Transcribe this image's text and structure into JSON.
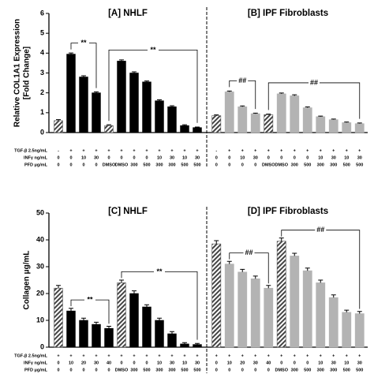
{
  "chart_data": [
    {
      "type": "bar",
      "y_label": [
        "Relative COL1A1 Expression",
        "[Fold Change]"
      ],
      "ylim": [
        0,
        6
      ],
      "yticks": [
        0,
        1,
        2,
        3,
        4,
        5,
        6
      ],
      "row_labels": [
        "TGF-β 2.5ng/mL",
        "INFγ ng/mL",
        "PFD μg/mL"
      ],
      "panels": [
        {
          "title": "[A]  NHLF",
          "color": "#000000",
          "rows": [
            [
              "-",
              "+",
              "+",
              "+",
              "+",
              "+",
              "+",
              "+",
              "+",
              "+",
              "+",
              "+"
            ],
            [
              "0",
              "0",
              "10",
              "30",
              "0",
              "0",
              "0",
              "0",
              "10",
              "30",
              "10",
              "30"
            ],
            [
              "0",
              "0",
              "0",
              "0",
              "DMSO",
              "DMSO",
              "300",
              "500",
              "300",
              "300",
              "500",
              "500"
            ]
          ],
          "values": [
            0.6,
            3.95,
            2.8,
            2.0,
            0.35,
            3.6,
            3.0,
            2.55,
            1.6,
            1.3,
            0.35,
            0.25
          ],
          "errors": [
            0.05,
            0.06,
            0.06,
            0.05,
            0.04,
            0.06,
            0.06,
            0.05,
            0.05,
            0.05,
            0.04,
            0.03
          ],
          "hatched": [
            true,
            false,
            false,
            false,
            true,
            false,
            false,
            false,
            false,
            false,
            false,
            false
          ],
          "annotations": [
            "**",
            "**"
          ]
        },
        {
          "title": "[B]  IPF Fibroblasts",
          "color": "#b3b3b3",
          "rows": [
            [
              "-",
              "+",
              "+",
              "+",
              "+",
              "+",
              "+",
              "+",
              "+",
              "+",
              "+",
              "+"
            ],
            [
              "0",
              "0",
              "10",
              "30",
              "0",
              "0",
              "0",
              "0",
              "10",
              "30",
              "10",
              "30"
            ],
            [
              "0",
              "0",
              "0",
              "0",
              "DMSO",
              "DMSO",
              "300",
              "500",
              "300",
              "300",
              "500",
              "500"
            ]
          ],
          "values": [
            0.85,
            2.05,
            1.3,
            0.95,
            0.9,
            1.95,
            1.85,
            1.25,
            0.8,
            0.65,
            0.5,
            0.45
          ],
          "errors": [
            0.04,
            0.04,
            0.04,
            0.03,
            0.03,
            0.04,
            0.05,
            0.04,
            0.03,
            0.03,
            0.03,
            0.03
          ],
          "hatched": [
            true,
            false,
            false,
            false,
            true,
            false,
            false,
            false,
            false,
            false,
            false,
            false
          ],
          "annotations": [
            "##",
            "##"
          ]
        }
      ]
    },
    {
      "type": "bar",
      "y_label": [
        "Collagen μg/mL"
      ],
      "ylim": [
        0,
        50
      ],
      "yticks": [
        0,
        10,
        20,
        30,
        40,
        50
      ],
      "row_labels": [
        "TGF-β 2.5ng/mL",
        "INFγ ng/mL",
        "PFD μg/mL"
      ],
      "panels": [
        {
          "title": "[C]  NHLF",
          "color": "#000000",
          "rows": [
            [
              "+",
              "+",
              "+",
              "+",
              "+",
              "+",
              "+",
              "+",
              "+",
              "+",
              "+",
              "+"
            ],
            [
              "0",
              "10",
              "20",
              "30",
              "40",
              "0",
              "0",
              "0",
              "10",
              "30",
              "10",
              "30"
            ],
            [
              "0",
              "0",
              "0",
              "0",
              "0",
              "DMSO",
              "300",
              "500",
              "300",
              "300",
              "500",
              "500"
            ]
          ],
          "values": [
            22,
            13.5,
            10,
            8.5,
            7,
            24,
            20,
            15,
            10,
            5,
            1.2,
            1.0
          ],
          "errors": [
            1,
            1,
            0.8,
            0.8,
            0.8,
            1,
            1,
            0.8,
            0.8,
            0.8,
            0.5,
            0.4
          ],
          "hatched": [
            true,
            false,
            false,
            false,
            false,
            true,
            false,
            false,
            false,
            false,
            false,
            false
          ],
          "annotations": [
            "**",
            "**"
          ]
        },
        {
          "title": "[D]  IPF Fibroblasts",
          "color": "#b3b3b3",
          "rows": [
            [
              "+",
              "+",
              "+",
              "+",
              "+",
              "+",
              "+",
              "+",
              "+",
              "+",
              "+",
              "+"
            ],
            [
              "0",
              "10",
              "20",
              "30",
              "40",
              "0",
              "0",
              "0",
              "10",
              "30",
              "10",
              "30"
            ],
            [
              "0",
              "0",
              "0",
              "0",
              "0",
              "DMSO",
              "300",
              "500",
              "300",
              "300",
              "500",
              "500"
            ]
          ],
          "values": [
            38.5,
            31,
            28,
            25.5,
            22,
            39.5,
            34,
            28.5,
            24,
            18.5,
            13,
            12.5
          ],
          "errors": [
            1.2,
            1,
            1,
            1,
            1,
            1.2,
            1,
            1,
            1,
            1,
            0.8,
            0.8
          ],
          "hatched": [
            true,
            false,
            false,
            false,
            false,
            true,
            false,
            false,
            false,
            false,
            false,
            false
          ],
          "annotations": [
            "##",
            "##"
          ]
        }
      ]
    }
  ]
}
